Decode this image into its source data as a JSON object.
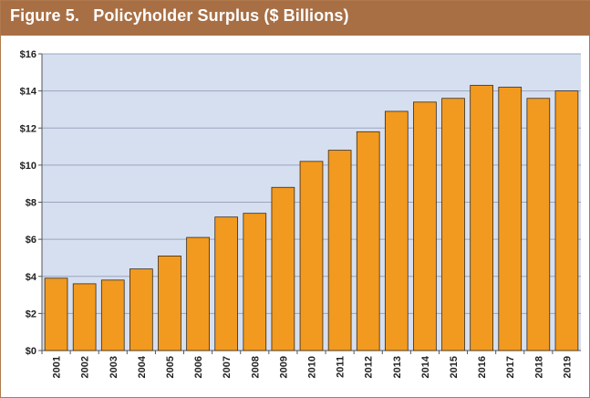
{
  "header": {
    "title": "Figure 5.   Policyholder Surplus ($ Billions)"
  },
  "colors": {
    "header_bg": "#a86f45",
    "plot_bg": "#d6dff0",
    "bar_fill": "#f29a1f",
    "bar_stroke": "#3a2a12",
    "grid": "#9aa6bf"
  },
  "chart_data": {
    "type": "bar",
    "title": "Policyholder Surplus ($ Billions)",
    "xlabel": "",
    "ylabel": "",
    "ylim": [
      0,
      16
    ],
    "grid": true,
    "yticks": [
      0,
      2,
      4,
      6,
      8,
      10,
      12,
      14,
      16
    ],
    "ytick_labels": [
      "$0",
      "$2",
      "$4",
      "$6",
      "$8",
      "$10",
      "$12",
      "$14",
      "$16"
    ],
    "categories": [
      "2001",
      "2002",
      "2003",
      "2004",
      "2005",
      "2006",
      "2007",
      "2008",
      "2009",
      "2010",
      "2011",
      "2012",
      "2013",
      "2014",
      "2015",
      "2016",
      "2017",
      "2018",
      "2019"
    ],
    "values": [
      3.9,
      3.6,
      3.8,
      4.4,
      5.1,
      6.1,
      7.2,
      7.4,
      8.8,
      10.2,
      10.8,
      11.8,
      12.9,
      13.4,
      13.6,
      14.3,
      14.2,
      13.6,
      14.0
    ]
  }
}
